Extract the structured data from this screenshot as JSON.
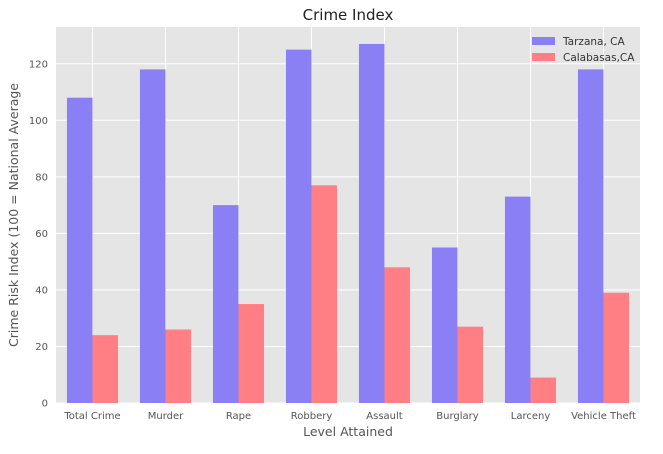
{
  "chart_data": {
    "type": "bar",
    "title": "Crime Index",
    "xlabel": "Level Attained",
    "ylabel": "Crime Risk Index (100 = National Average",
    "categories": [
      "Total Crime",
      "Murder",
      "Rape",
      "Robbery",
      "Assault",
      "Burglary",
      "Larceny",
      "Vehicle Theft"
    ],
    "series": [
      {
        "name": "Tarzana, CA",
        "color": "#8b7ff5",
        "values": [
          108,
          118,
          70,
          125,
          127,
          55,
          73,
          118
        ]
      },
      {
        "name": "Calabasas,CA",
        "color": "#ff7f85",
        "values": [
          24,
          26,
          35,
          77,
          48,
          27,
          9,
          39
        ]
      }
    ],
    "ylim": [
      0,
      133
    ],
    "yticks": [
      0,
      20,
      40,
      60,
      80,
      100,
      120
    ],
    "grid": true,
    "legend_position": "top-right",
    "background": "#e5e5e5"
  }
}
